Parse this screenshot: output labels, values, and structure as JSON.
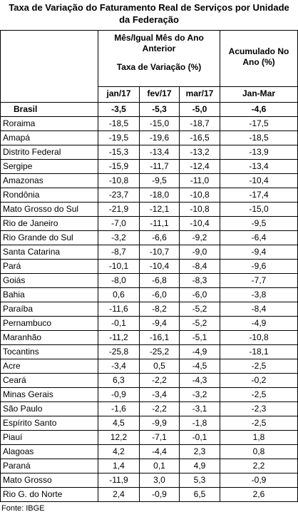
{
  "title": "Taxa de Variação do Faturamento Real de Serviços por Unidade da Federação",
  "header": {
    "group": "Mês/Igual Mês do Ano Anterior",
    "sub": "Taxa de Variação (%)",
    "accum": "Acumulado No Ano (%)",
    "columns": [
      "jan/17",
      "fev/17",
      "mar/17",
      "Jan-Mar"
    ]
  },
  "brasil": [
    "Brasil",
    "-3,5",
    "-5,3",
    "-5,0",
    "-4,6"
  ],
  "rows": [
    [
      "Roraima",
      "-18,5",
      "-15,0",
      "-18,7",
      "-17,5"
    ],
    [
      "Amapá",
      "-19,5",
      "-19,6",
      "-16,5",
      "-18,5"
    ],
    [
      "Distrito Federal",
      "-15,3",
      "-13,4",
      "-13,2",
      "-13,9"
    ],
    [
      "Sergipe",
      "-15,9",
      "-11,7",
      "-12,4",
      "-13,4"
    ],
    [
      "Amazonas",
      "-10,8",
      "-9,5",
      "-11,0",
      "-10,4"
    ],
    [
      "Rondônia",
      "-23,7",
      "-18,0",
      "-10,8",
      "-17,4"
    ],
    [
      "Mato Grosso do Sul",
      "-21,9",
      "-12,1",
      "-10,8",
      "-15,0"
    ],
    [
      "Rio de Janeiro",
      "-7,0",
      "-11,1",
      "-10,4",
      "-9,5"
    ],
    [
      "Rio Grande do Sul",
      "-3,2",
      "-6,6",
      "-9,2",
      "-6,4"
    ],
    [
      "Santa Catarina",
      "-8,7",
      "-10,7",
      "-9,0",
      "-9,4"
    ],
    [
      "Pará",
      "-10,1",
      "-10,4",
      "-8,4",
      "-9,6"
    ],
    [
      "Goiás",
      "-8,0",
      "-6,8",
      "-8,3",
      "-7,7"
    ],
    [
      "Bahia",
      "0,6",
      "-6,0",
      "-6,0",
      "-3,8"
    ],
    [
      "Paraíba",
      "-11,6",
      "-8,2",
      "-5,2",
      "-8,4"
    ],
    [
      "Pernambuco",
      "-0,1",
      "-9,4",
      "-5,2",
      "-4,9"
    ],
    [
      "Maranhão",
      "-11,2",
      "-16,1",
      "-5,1",
      "-10,8"
    ],
    [
      "Tocantins",
      "-25,8",
      "-25,2",
      "-4,9",
      "-18,1"
    ],
    [
      "Acre",
      "-3,4",
      "0,5",
      "-4,5",
      "-2,5"
    ],
    [
      "Ceará",
      "6,3",
      "-2,2",
      "-4,3",
      "-0,2"
    ],
    [
      "Minas Gerais",
      "-0,9",
      "-3,4",
      "-3,2",
      "-2,5"
    ],
    [
      "São Paulo",
      "-1,6",
      "-2,2",
      "-3,1",
      "-2,3"
    ],
    [
      "Espírito Santo",
      "4,5",
      "-9,9",
      "-1,8",
      "-2,5"
    ],
    [
      "Piauí",
      "12,2",
      "-7,1",
      "-0,1",
      "1,8"
    ],
    [
      "Alagoas",
      "4,2",
      "-4,4",
      "2,3",
      "0,8"
    ],
    [
      "Paraná",
      "1,4",
      "0,1",
      "4,9",
      "2,2"
    ],
    [
      "Mato Grosso",
      "-11,9",
      "3,0",
      "5,3",
      "-0,9"
    ],
    [
      "Rio G. do Norte",
      "2,4",
      "-0,9",
      "6,5",
      "2,6"
    ]
  ],
  "source": "Fonte: IBGE"
}
